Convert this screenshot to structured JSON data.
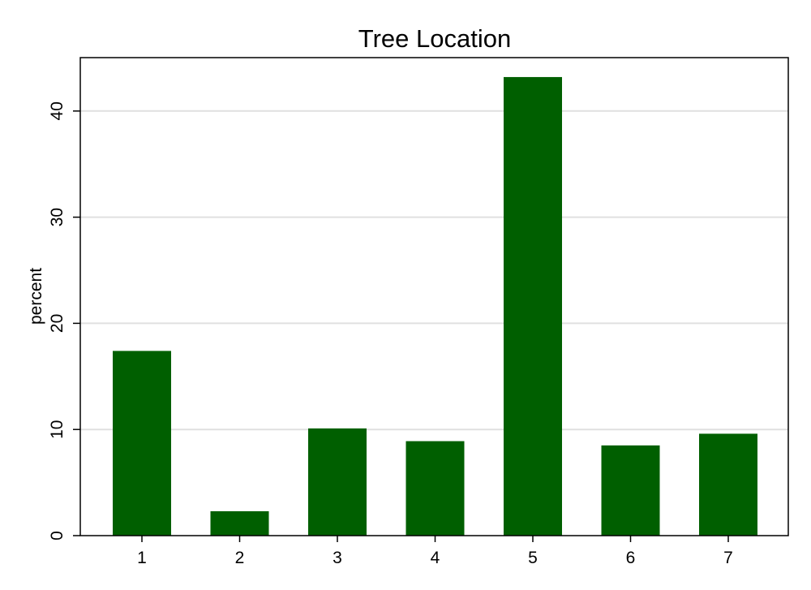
{
  "chart_data": {
    "type": "bar",
    "title": "Tree Location",
    "xlabel": "",
    "ylabel": "percent",
    "categories": [
      "1",
      "2",
      "3",
      "4",
      "5",
      "6",
      "7"
    ],
    "values": [
      17.4,
      2.3,
      10.1,
      8.9,
      43.2,
      8.5,
      9.6
    ],
    "ylim": [
      0,
      45
    ],
    "yticks": [
      0,
      10,
      20,
      30,
      40
    ],
    "ytick_labels": [
      "0",
      "10",
      "20",
      "30",
      "40"
    ],
    "grid": true,
    "colors": {
      "bar": "#005f00",
      "grid": "#e0e0e0",
      "frame": "#000000",
      "background": "#ffffff"
    }
  }
}
